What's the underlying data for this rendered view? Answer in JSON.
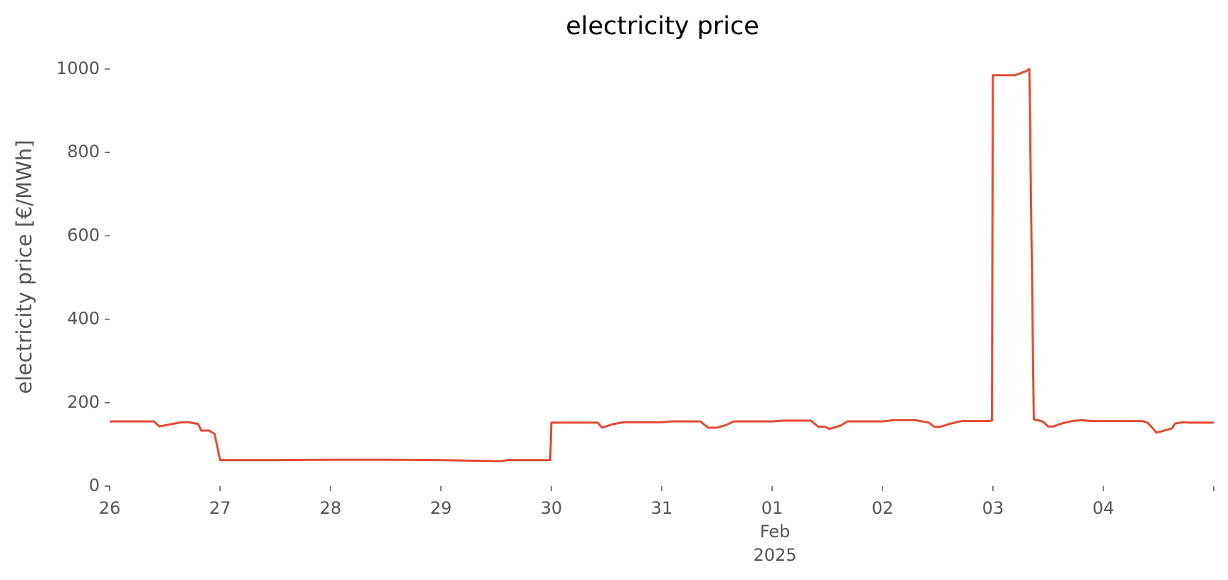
{
  "chart_data": {
    "type": "line",
    "title": "electricity price",
    "ylabel": "electricity price [€/MWh]",
    "color": "#e24a33",
    "x": [
      0,
      0.4,
      0.45,
      0.55,
      0.65,
      0.72,
      0.78,
      0.8,
      0.83,
      0.9,
      0.95,
      1.0,
      1.5,
      2.0,
      2.5,
      3.0,
      3.5,
      3.55,
      3.6,
      3.99,
      4.0,
      4.42,
      4.46,
      4.55,
      4.65,
      4.75,
      5.0,
      5.1,
      5.35,
      5.42,
      5.5,
      5.58,
      5.65,
      6.0,
      6.1,
      6.35,
      6.42,
      6.48,
      6.52,
      6.62,
      6.68,
      7.0,
      7.1,
      7.3,
      7.42,
      7.47,
      7.52,
      7.62,
      7.72,
      7.95,
      7.99,
      8.0,
      8.1,
      8.2,
      8.3,
      8.33,
      8.37,
      8.45,
      8.5,
      8.55,
      8.62,
      8.72,
      8.8,
      8.9,
      9.0,
      9.35,
      9.4,
      9.45,
      9.48,
      9.55,
      9.62,
      9.65,
      9.72,
      9.78,
      10.0
    ],
    "values": [
      155,
      155,
      143,
      148,
      153,
      153,
      150,
      149,
      133,
      133,
      125,
      62,
      62,
      63,
      63,
      62,
      60,
      60,
      62,
      62,
      152,
      152,
      140,
      148,
      153,
      153,
      153,
      155,
      155,
      140,
      140,
      146,
      155,
      155,
      157,
      157,
      142,
      142,
      137,
      145,
      155,
      155,
      158,
      158,
      152,
      142,
      142,
      150,
      156,
      156,
      157,
      985,
      985,
      985,
      995,
      1000,
      160,
      155,
      143,
      143,
      150,
      156,
      158,
      156,
      156,
      156,
      152,
      138,
      128,
      133,
      138,
      150,
      153,
      152,
      152
    ],
    "xlim": [
      0,
      10
    ],
    "xticks": [
      {
        "value": 0,
        "label": "26"
      },
      {
        "value": 1,
        "label": "27"
      },
      {
        "value": 2,
        "label": "28"
      },
      {
        "value": 3,
        "label": "29"
      },
      {
        "value": 4,
        "label": "30"
      },
      {
        "value": 5,
        "label": "31"
      },
      {
        "value": 6,
        "label": "01"
      },
      {
        "value": 7,
        "label": "02"
      },
      {
        "value": 8,
        "label": "03"
      },
      {
        "value": 9,
        "label": "04"
      },
      {
        "value": 10,
        "label": null
      }
    ],
    "month_label": "Feb",
    "year_label": "2025",
    "ylim": [
      0,
      1000
    ],
    "yticks": [
      0,
      200,
      400,
      600,
      800,
      1000
    ],
    "grid": false
  }
}
